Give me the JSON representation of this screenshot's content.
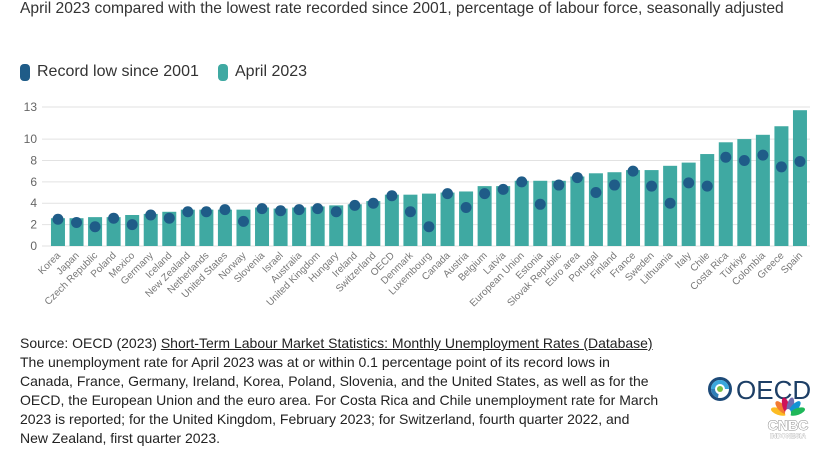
{
  "chart_data": {
    "type": "bar",
    "title": "April 2023 compared with the lowest rate recorded since 2001, percentage of labour force, seasonally adjusted",
    "categories": [
      "Korea",
      "Japan",
      "Czech Republic",
      "Poland",
      "Mexico",
      "Germany",
      "Iceland",
      "New Zealand",
      "Netherlands",
      "United States",
      "Norway",
      "Slovenia",
      "Israel",
      "Australia",
      "United Kingdom",
      "Hungary",
      "Ireland",
      "Switzerland",
      "OECD",
      "Denmark",
      "Luxembourg",
      "Canada",
      "Austria",
      "Belgium",
      "Latvia",
      "European Union",
      "Estonia",
      "Slovak Republic",
      "Euro area",
      "Portugal",
      "Finland",
      "France",
      "Sweden",
      "Lithuania",
      "Italy",
      "Chile",
      "Costa Rica",
      "Türkiye",
      "Colombia",
      "Greece",
      "Spain"
    ],
    "series": [
      {
        "name": "Record low since 2001",
        "mark": "dot",
        "color": "#1f5c88",
        "values": [
          2.5,
          2.2,
          1.8,
          2.6,
          2.0,
          2.9,
          2.6,
          3.2,
          3.2,
          3.4,
          2.3,
          3.5,
          3.3,
          3.4,
          3.5,
          3.2,
          3.8,
          4.0,
          4.7,
          3.2,
          1.8,
          4.9,
          3.6,
          4.9,
          5.3,
          6.0,
          3.9,
          5.7,
          6.4,
          5.0,
          5.7,
          7.0,
          5.6,
          4.0,
          5.9,
          5.6,
          8.3,
          8.0,
          8.5,
          7.4,
          7.9
        ]
      },
      {
        "name": "April 2023",
        "mark": "bar",
        "color": "#3fa9a2",
        "values": [
          2.6,
          2.6,
          2.7,
          2.7,
          2.9,
          3.0,
          3.2,
          3.4,
          3.4,
          3.4,
          3.4,
          3.6,
          3.5,
          3.6,
          3.7,
          3.8,
          3.9,
          4.2,
          4.8,
          4.8,
          4.9,
          5.0,
          5.1,
          5.6,
          5.6,
          6.1,
          6.1,
          6.1,
          6.5,
          6.8,
          6.9,
          7.1,
          7.1,
          7.5,
          7.8,
          8.6,
          9.7,
          10.0,
          10.4,
          11.2,
          12.7
        ]
      }
    ],
    "ylim": [
      0,
      13
    ],
    "yticks": [
      0,
      2,
      4,
      6,
      8,
      10,
      13
    ],
    "grid": true,
    "legend_position": "top-left"
  },
  "source": {
    "prefix": "Source: OECD (2023) ",
    "link_text": "Short-Term Labour Market Statistics: Monthly Unemployment Rates (Database)"
  },
  "note_lines": [
    "The unemployment rate for April 2023 was at or within 0.1 percentage point of its record lows in",
    "Canada, France, Germany, Ireland, Korea, Poland, Slovenia, and the United States, as well as for the",
    "OECD, the European Union and the euro area. For Costa Rica and Chile unemployment rate for March",
    "2023 is reported; for the United Kingdom, February 2023; for Switzerland, fourth quarter 2022, and",
    "New Zealand, first quarter 2023."
  ],
  "logo": {
    "text": "OECD"
  },
  "watermark": {
    "text": "CNBC",
    "subtext": "INDONESIA"
  }
}
